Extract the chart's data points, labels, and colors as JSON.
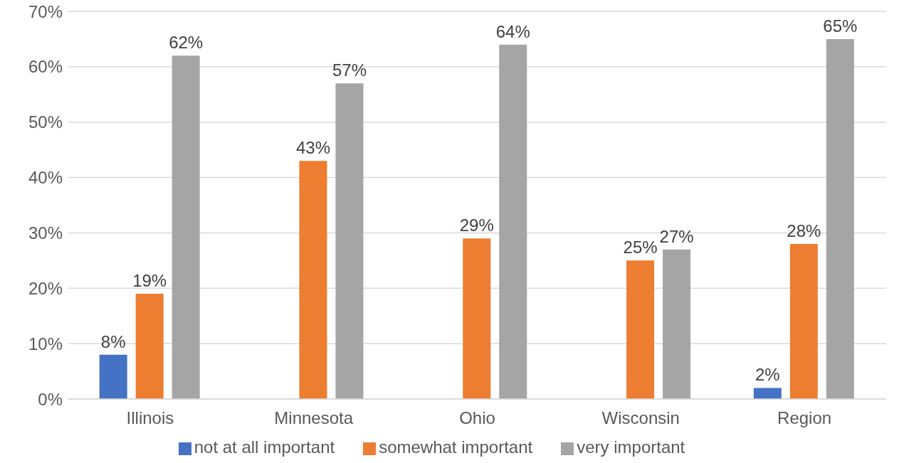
{
  "chart_data": {
    "type": "bar",
    "categories": [
      "Illinois",
      "Minnesota",
      "Ohio",
      "Wisconsin",
      "Region"
    ],
    "series": [
      {
        "name": "not at all important",
        "color": "#4472c4",
        "values": [
          8,
          null,
          null,
          null,
          2
        ],
        "value_labels": [
          "8%",
          null,
          null,
          null,
          "2%"
        ]
      },
      {
        "name": "somewhat important",
        "color": "#ed7d31",
        "values": [
          19,
          43,
          29,
          25,
          28
        ],
        "value_labels": [
          "19%",
          "43%",
          "29%",
          "25%",
          "28%"
        ]
      },
      {
        "name": "very important",
        "color": "#a5a5a5",
        "values": [
          62,
          57,
          64,
          27,
          65
        ],
        "value_labels": [
          "62%",
          "57%",
          "64%",
          "27%",
          "65%"
        ]
      }
    ],
    "ylim": [
      0,
      70
    ],
    "yticks": [
      {
        "value": 0,
        "label": "0%"
      },
      {
        "value": 10,
        "label": "10%"
      },
      {
        "value": 20,
        "label": "20%"
      },
      {
        "value": 30,
        "label": "30%"
      },
      {
        "value": 40,
        "label": "40%"
      },
      {
        "value": 50,
        "label": "50%"
      },
      {
        "value": 60,
        "label": "60%"
      },
      {
        "value": 70,
        "label": "70%"
      }
    ],
    "grid": "y",
    "legend": "bottom"
  }
}
